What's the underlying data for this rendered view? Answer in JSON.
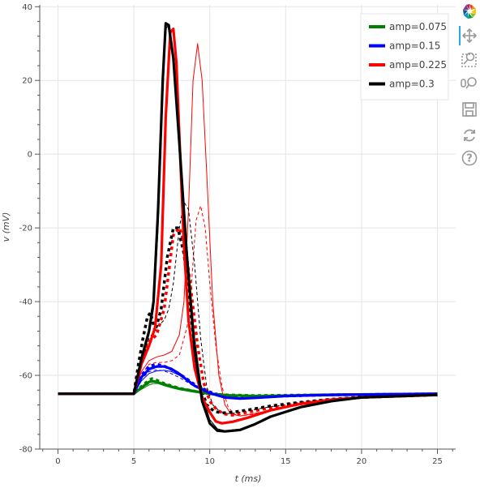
{
  "chart_data": {
    "type": "line",
    "title": "",
    "xlabel": "t (ms)",
    "ylabel": "v (mV)",
    "xlim": [
      -1.2,
      26.2
    ],
    "ylim": [
      -80,
      40.5
    ],
    "xticks": [
      0,
      5,
      10,
      15,
      20,
      25
    ],
    "yticks": [
      -80,
      -60,
      -40,
      -20,
      0,
      20,
      40
    ],
    "grid": true,
    "legend_position": "top-right",
    "legend": [
      {
        "name": "amp=0.075",
        "color": "#008000"
      },
      {
        "name": "amp=0.15",
        "color": "#0000ff"
      },
      {
        "name": "amp=0.225",
        "color": "#ff0000"
      },
      {
        "name": "amp=0.3",
        "color": "#000000"
      }
    ],
    "series": [
      {
        "color": "#008000",
        "style": "thin",
        "x": [
          0,
          4.9,
          5,
          5.5,
          6,
          6.3,
          6.6,
          7,
          7.5,
          8,
          9,
          10,
          11,
          13,
          15,
          17,
          20,
          25
        ],
        "y": [
          -65,
          -65,
          -65,
          -63.8,
          -62.6,
          -62.2,
          -62.2,
          -62.8,
          -63.4,
          -63.9,
          -64.6,
          -65.2,
          -65.5,
          -65.5,
          -65.3,
          -65.2,
          -65.1,
          -65
        ]
      },
      {
        "color": "#008000",
        "style": "thick",
        "x": [
          0,
          4.9,
          5,
          5.5,
          6,
          6.2,
          6.5,
          7,
          7.5,
          8,
          9,
          10,
          11,
          13,
          15,
          17,
          20,
          25
        ],
        "y": [
          -65,
          -65,
          -65,
          -63.3,
          -61.8,
          -61.5,
          -61.8,
          -62.4,
          -63.1,
          -63.6,
          -64.3,
          -65,
          -65.4,
          -65.6,
          -65.5,
          -65.3,
          -65.2,
          -65
        ]
      },
      {
        "color": "#008000",
        "style": "dashed",
        "x": [
          0,
          4.9,
          5,
          5.5,
          6,
          6.3,
          6.6,
          7,
          7.5,
          8,
          9,
          10,
          11,
          13,
          15,
          20,
          25
        ],
        "y": [
          -65,
          -65,
          -65,
          -63.6,
          -62.2,
          -61.8,
          -61.9,
          -62.5,
          -63.2,
          -63.7,
          -64.4,
          -65.1,
          -65.5,
          -65.6,
          -65.4,
          -65.2,
          -65
        ]
      },
      {
        "color": "#008000",
        "style": "dotted",
        "x": [
          0,
          4.9,
          5,
          5.5,
          6,
          6.2,
          6.5,
          7,
          7.5,
          8,
          9,
          10,
          11,
          13,
          15,
          20,
          25
        ],
        "y": [
          -65,
          -65,
          -65,
          -63,
          -61.3,
          -60.9,
          -61.3,
          -62.2,
          -62.9,
          -63.5,
          -64.3,
          -65,
          -65.3,
          -65.5,
          -65.4,
          -65.2,
          -65
        ]
      },
      {
        "color": "#0000ff",
        "style": "thin",
        "x": [
          0,
          4.9,
          5,
          5.5,
          6,
          6.5,
          7,
          7.5,
          8,
          8.5,
          9,
          10,
          11,
          12,
          13,
          15,
          18,
          25
        ],
        "y": [
          -65,
          -65,
          -65,
          -61.5,
          -59.5,
          -58.8,
          -58.6,
          -59,
          -60,
          -61.5,
          -63,
          -65,
          -66.2,
          -66.4,
          -66.1,
          -65.6,
          -65.3,
          -65
        ]
      },
      {
        "color": "#0000ff",
        "style": "thick",
        "x": [
          0,
          4.9,
          5,
          5.5,
          6,
          6.5,
          7,
          7.5,
          8,
          8.5,
          9,
          10,
          11,
          12,
          13,
          15,
          18,
          25
        ],
        "y": [
          -65,
          -65,
          -65,
          -60.5,
          -58.3,
          -57.6,
          -57.6,
          -58.3,
          -59.6,
          -61.2,
          -62.8,
          -64.8,
          -66,
          -66.3,
          -66.1,
          -65.6,
          -65.3,
          -65
        ]
      },
      {
        "color": "#0000ff",
        "style": "dashed",
        "x": [
          0,
          4.9,
          5,
          5.5,
          6,
          6.5,
          7,
          7.5,
          8,
          8.5,
          9,
          10,
          11,
          12,
          13,
          15,
          18,
          25
        ],
        "y": [
          -65,
          -65,
          -65,
          -61,
          -59,
          -58.5,
          -58.8,
          -59.6,
          -60.6,
          -61.8,
          -63.1,
          -65,
          -66.1,
          -66.3,
          -66,
          -65.6,
          -65.3,
          -65
        ]
      },
      {
        "color": "#0000ff",
        "style": "dotted",
        "x": [
          0,
          4.9,
          5,
          5.5,
          6,
          6.5,
          7,
          7.5,
          8,
          8.5,
          9,
          10,
          11,
          12,
          13,
          15,
          18,
          25
        ],
        "y": [
          -65,
          -65,
          -65,
          -60,
          -57.5,
          -57,
          -57.5,
          -58.4,
          -59.6,
          -61,
          -62.5,
          -64.5,
          -65.8,
          -66.2,
          -66,
          -65.6,
          -65.3,
          -65
        ]
      },
      {
        "color": "#ff0000",
        "style": "thin",
        "x": [
          0,
          4.9,
          5,
          5.5,
          6,
          6.5,
          7,
          7.5,
          8,
          8.3,
          8.6,
          8.9,
          9.2,
          9.5,
          9.8,
          10.2,
          10.6,
          11,
          11.4,
          12,
          13,
          14,
          16,
          18,
          20,
          25
        ],
        "y": [
          -65,
          -65,
          -65,
          -59,
          -56,
          -55,
          -54.5,
          -53.5,
          -49,
          -40,
          -15,
          20,
          30,
          20,
          -5,
          -40,
          -60,
          -68,
          -70.5,
          -71,
          -70.3,
          -69.5,
          -68,
          -67,
          -66.2,
          -65.3
        ]
      },
      {
        "color": "#ff0000",
        "style": "thick",
        "x": [
          0,
          4.9,
          5,
          5.5,
          6,
          6.4,
          6.8,
          7.1,
          7.4,
          7.6,
          7.8,
          8,
          8.3,
          8.6,
          9,
          9.5,
          10,
          10.4,
          10.8,
          11.5,
          12.5,
          14,
          16,
          18,
          20,
          25
        ],
        "y": [
          -65,
          -65,
          -65,
          -57,
          -52,
          -47,
          -30,
          10,
          33,
          34,
          25,
          5,
          -25,
          -45,
          -58,
          -66,
          -70,
          -72.5,
          -73,
          -72.6,
          -71.5,
          -69.5,
          -67.7,
          -66.6,
          -66,
          -65.3
        ]
      },
      {
        "color": "#ff0000",
        "style": "dashed",
        "x": [
          0,
          4.9,
          5,
          5.5,
          6,
          6.5,
          7,
          7.5,
          8,
          8.5,
          8.8,
          9.1,
          9.4,
          9.7,
          10,
          10.4,
          10.8,
          11.2,
          11.6,
          12,
          13,
          14,
          16,
          18,
          20,
          25
        ],
        "y": [
          -65,
          -65,
          -65,
          -60,
          -57,
          -56.5,
          -56.5,
          -56,
          -54.5,
          -47,
          -35,
          -18,
          -14,
          -20,
          -35,
          -52,
          -63,
          -68.5,
          -70.5,
          -71,
          -70.5,
          -69.5,
          -68,
          -67,
          -66.2,
          -65.3
        ]
      },
      {
        "color": "#ff0000",
        "style": "dotted",
        "x": [
          0,
          4.9,
          5,
          5.5,
          6,
          6.5,
          7,
          7.3,
          7.6,
          8,
          8.4,
          8.8,
          9.2,
          9.6,
          10,
          10.5,
          11,
          11.5,
          12.5,
          14,
          16,
          18,
          20,
          25
        ],
        "y": [
          -65,
          -65,
          -65,
          -56,
          -51,
          -49,
          -42,
          -32,
          -22,
          -20,
          -25,
          -38,
          -52,
          -62,
          -67,
          -69.5,
          -70.5,
          -70.8,
          -70,
          -68.8,
          -67.5,
          -66.6,
          -66,
          -65.3
        ]
      },
      {
        "color": "#000000",
        "style": "thin",
        "x": [
          0,
          4.9,
          5,
          5.5,
          6,
          6.3,
          6.6,
          6.9,
          7.1,
          7.3,
          7.6,
          8,
          8.5,
          9,
          9.5,
          10,
          10.5,
          11,
          12,
          13,
          14,
          16,
          18,
          20,
          25
        ],
        "y": [
          -65,
          -65,
          -65,
          -56,
          -49,
          -42,
          -20,
          15,
          34,
          35,
          27,
          5,
          -25,
          -50,
          -65,
          -72,
          -74.5,
          -75,
          -74.6,
          -73,
          -71,
          -68.5,
          -67,
          -66,
          -65.3
        ]
      },
      {
        "color": "#000000",
        "style": "thick",
        "x": [
          0,
          4.9,
          5,
          5.5,
          6,
          6.3,
          6.6,
          6.9,
          7.1,
          7.3,
          7.6,
          8,
          8.5,
          9,
          9.5,
          10,
          10.5,
          11,
          12,
          13,
          14,
          16,
          18,
          20,
          25
        ],
        "y": [
          -65,
          -65,
          -65,
          -55.5,
          -48,
          -40,
          -15,
          20,
          35.5,
          35,
          26,
          3,
          -28,
          -53,
          -67,
          -73,
          -75,
          -75.2,
          -74.8,
          -73.2,
          -71.2,
          -68.6,
          -67,
          -66,
          -65.3
        ]
      },
      {
        "color": "#000000",
        "style": "dashed",
        "x": [
          0,
          4.9,
          5,
          5.5,
          6,
          6.5,
          7,
          7.3,
          7.6,
          8,
          8.3,
          8.6,
          9,
          9.4,
          9.8,
          10.2,
          10.7,
          11.2,
          11.7,
          12.5,
          14,
          16,
          18,
          20,
          25
        ],
        "y": [
          -65,
          -65,
          -65,
          -57,
          -50,
          -47,
          -45,
          -42,
          -35,
          -20,
          -13,
          -15,
          -30,
          -50,
          -63,
          -68,
          -70,
          -70.4,
          -70.2,
          -69.6,
          -68.5,
          -67.5,
          -66.6,
          -66,
          -65.3
        ]
      },
      {
        "color": "#000000",
        "style": "dotted",
        "x": [
          0,
          4.9,
          5,
          5.3,
          5.6,
          5.9,
          6.1,
          6.4,
          6.8,
          7.2,
          7.6,
          7.9,
          8.3,
          8.8,
          9.3,
          9.8,
          10.3,
          10.8,
          11.5,
          12.5,
          14,
          16,
          18,
          20,
          25
        ],
        "y": [
          -65,
          -65,
          -65,
          -57,
          -50,
          -44,
          -43,
          -48,
          -42,
          -28,
          -20,
          -20,
          -27,
          -45,
          -62,
          -68,
          -69.8,
          -70.2,
          -70,
          -69.4,
          -68.3,
          -67.3,
          -66.5,
          -65.9,
          -65.3
        ]
      }
    ]
  },
  "toolbar": {
    "tools": [
      "bokeh-logo-icon",
      "pan-icon",
      "box-zoom-icon",
      "wheel-zoom-icon",
      "save-icon",
      "reset-icon",
      "help-icon"
    ]
  }
}
